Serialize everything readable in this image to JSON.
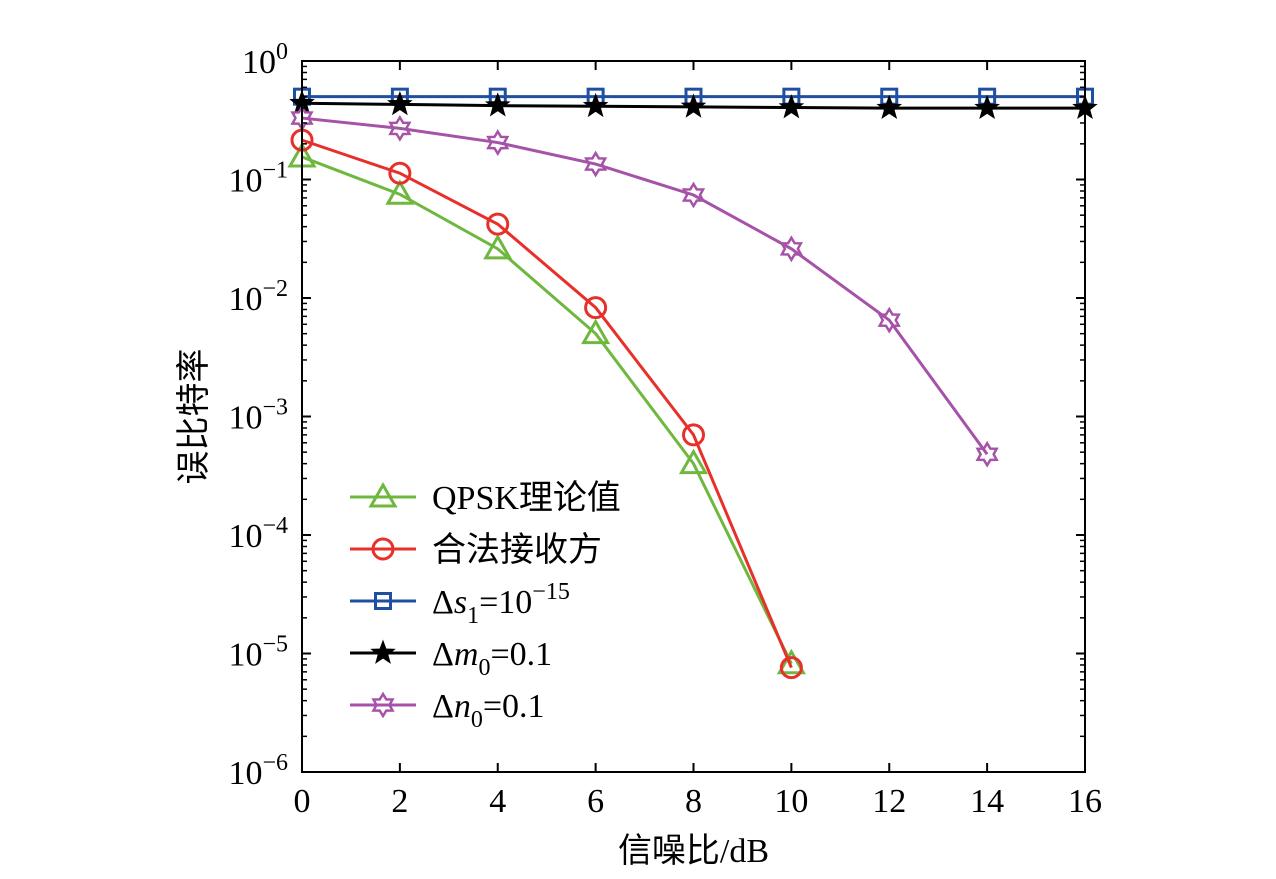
{
  "chart_data": {
    "type": "line",
    "xlabel": "信噪比/dB",
    "ylabel": "误比特率",
    "xlim": [
      0,
      16
    ],
    "ylim": [
      1e-06,
      1
    ],
    "yscale": "log",
    "grid": false,
    "legend_position": "lower-left",
    "xticks": [
      "0",
      "2",
      "4",
      "6",
      "8",
      "10",
      "12",
      "14",
      "16"
    ],
    "yticks": [
      {
        "base": "10",
        "exp": "0"
      },
      {
        "base": "10",
        "exp": "−1"
      },
      {
        "base": "10",
        "exp": "−2"
      },
      {
        "base": "10",
        "exp": "−3"
      },
      {
        "base": "10",
        "exp": "−4"
      },
      {
        "base": "10",
        "exp": "−5"
      },
      {
        "base": "10",
        "exp": "−6"
      }
    ],
    "series": [
      {
        "name": "QPSK理论值",
        "label_parts": [
          {
            "t": "QPSK理论值"
          }
        ],
        "color": "#6fb83f",
        "marker": "triangle",
        "x": [
          0,
          2,
          4,
          6,
          8,
          10
        ],
        "y": [
          0.155,
          0.075,
          0.026,
          0.005,
          0.0004,
          8.2e-06
        ]
      },
      {
        "name": "合法接收方",
        "label_parts": [
          {
            "t": "合法接收方"
          }
        ],
        "color": "#e8302a",
        "marker": "circle",
        "x": [
          0,
          2,
          4,
          6,
          8,
          10
        ],
        "y": [
          0.215,
          0.113,
          0.042,
          0.0083,
          0.0007,
          7.6e-06
        ]
      },
      {
        "name": "Δs1=10−15",
        "label_parts": [
          {
            "t": "Δ"
          },
          {
            "t": "s",
            "it": true
          },
          {
            "t": "1",
            "sub": true
          },
          {
            "t": "=10"
          },
          {
            "t": "−15",
            "sup": true
          }
        ],
        "color": "#1f4fa0",
        "marker": "square",
        "x": [
          0,
          2,
          4,
          6,
          8,
          10,
          12,
          14,
          16
        ],
        "y": [
          0.5,
          0.5,
          0.5,
          0.5,
          0.5,
          0.5,
          0.5,
          0.5,
          0.5
        ]
      },
      {
        "name": "Δm0=0.1",
        "label_parts": [
          {
            "t": "Δ"
          },
          {
            "t": "m",
            "it": true
          },
          {
            "t": "0",
            "sub": true
          },
          {
            "t": "=0.1"
          }
        ],
        "color": "#000000",
        "marker": "star5",
        "x": [
          0,
          2,
          4,
          6,
          8,
          10,
          12,
          14,
          16
        ],
        "y": [
          0.44,
          0.43,
          0.42,
          0.415,
          0.41,
          0.405,
          0.4,
          0.4,
          0.4
        ]
      },
      {
        "name": "Δn0=0.1",
        "label_parts": [
          {
            "t": "Δ"
          },
          {
            "t": "n",
            "it": true
          },
          {
            "t": "0",
            "sub": true
          },
          {
            "t": "=0.1"
          }
        ],
        "color": "#a552a8",
        "marker": "star6",
        "x": [
          0,
          2,
          4,
          6,
          8,
          10,
          12,
          14
        ],
        "y": [
          0.33,
          0.27,
          0.205,
          0.135,
          0.074,
          0.026,
          0.0065,
          0.00048
        ]
      }
    ]
  }
}
